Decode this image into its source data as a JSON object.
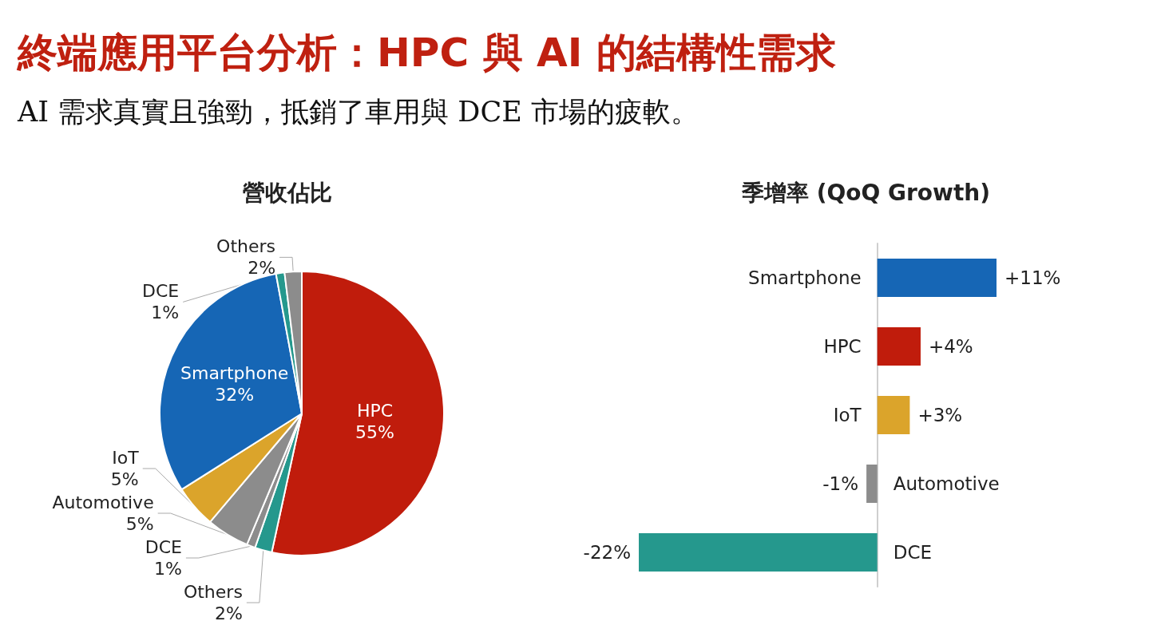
{
  "chart_data": [
    {
      "type": "other",
      "title": "終端應用平台分析：HPC 與 AI 的結構性需求",
      "subtitle": "AI 需求真實且強勁，抵銷了車用與 DCE 市場的疲軟。"
    },
    {
      "type": "pie",
      "title": "營收佔比",
      "categories": [
        "HPC",
        "Others",
        "DCE",
        "Automotive",
        "IoT",
        "Smartphone",
        "DCE",
        "Others"
      ],
      "values": [
        55,
        2,
        1,
        5,
        5,
        32,
        1,
        2
      ],
      "colors": [
        "#c01c0c",
        "#25988d",
        "#8c8c8c",
        "#8c8c8c",
        "#dba42b",
        "#1666b5",
        "#25988d",
        "#8c8c8c"
      ],
      "value_labels": [
        "55%",
        "2%",
        "1%",
        "5%",
        "5%",
        "32%",
        "1%",
        "2%"
      ]
    },
    {
      "type": "bar",
      "orientation": "horizontal",
      "title": "季增率 (QoQ Growth)",
      "categories": [
        "Smartphone",
        "HPC",
        "IoT",
        "Automotive",
        "DCE"
      ],
      "values": [
        11,
        4,
        3,
        -1,
        -22
      ],
      "colors": [
        "#1666b5",
        "#c01c0c",
        "#dba42b",
        "#8c8c8c",
        "#25988d"
      ],
      "value_labels": [
        "+11%",
        "+4%",
        "+3%",
        "-1%",
        "-22%"
      ]
    }
  ]
}
